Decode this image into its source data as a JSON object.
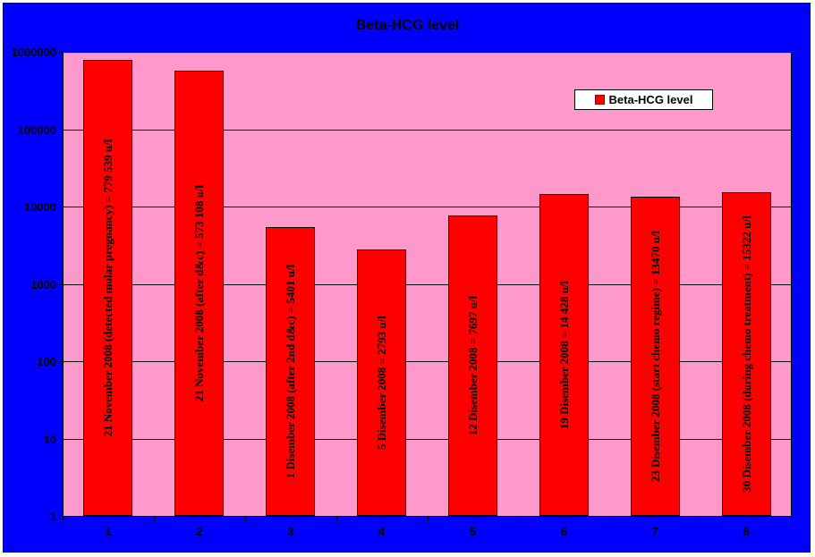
{
  "colors": {
    "background": "#0000FF",
    "plot_background": "#FF99CC",
    "bar": "#FF0000",
    "bar_border": "#000000",
    "text": "#000000",
    "legend_background": "#FFFFFF"
  },
  "chart_data": {
    "type": "bar",
    "title": "Beta-HCG level",
    "xlabel": "",
    "ylabel": "",
    "y_scale": "log",
    "ylim": [
      1,
      1000000
    ],
    "grid": true,
    "y_tick_labels": [
      "1",
      "10",
      "100",
      "1000",
      "10000",
      "100000",
      "1000000"
    ],
    "categories": [
      "1",
      "2",
      "3",
      "4",
      "5",
      "6",
      "7",
      "8"
    ],
    "series": [
      {
        "name": "Beta-HCG level",
        "values": [
          779539,
          573108,
          5401,
          2793,
          7697,
          14428,
          13470,
          15322
        ]
      }
    ],
    "bar_labels": [
      "21 November 2008 (detected molar pregnancy) = 779 539 u/l",
      "21 November 2008 (after d&c) = 573 108 u/l",
      "1 Disember 2008 (after 2nd d&c) = 5401 u/l",
      "5 Disember 2008 = 2793 u/l",
      "12 Disember 2008 = 7697 u/l",
      "19 Disember 2008 = 14 428 u/l",
      "23 Disember 2008 (start chemo regime) = 13470 u/l",
      "30 Disember 2008 (during chemo treatment) = 15322 u/l"
    ],
    "legend": {
      "entries": [
        "Beta-HCG level"
      ],
      "position": "top-right"
    }
  }
}
